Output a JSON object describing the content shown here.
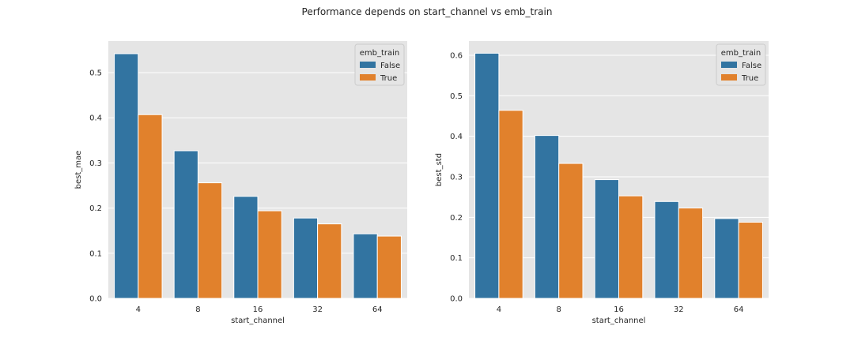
{
  "figure": {
    "title": "Performance depends on start_channel vs emb_train"
  },
  "colors": {
    "background": "#e5e5e5",
    "grid": "#ffffff",
    "False": "#3274a1",
    "True": "#e1812c"
  },
  "chart_data": [
    {
      "type": "bar",
      "categories": [
        "4",
        "8",
        "16",
        "32",
        "64"
      ],
      "series": [
        {
          "name": "False",
          "values": [
            0.542,
            0.327,
            0.226,
            0.178,
            0.143
          ]
        },
        {
          "name": "True",
          "values": [
            0.407,
            0.256,
            0.194,
            0.165,
            0.138
          ]
        }
      ],
      "xlabel": "start_channel",
      "ylabel": "best_mae",
      "ylim": [
        0,
        0.57
      ],
      "yticks": [
        0.0,
        0.1,
        0.2,
        0.3,
        0.4,
        0.5
      ],
      "ytick_labels": [
        "0.0",
        "0.1",
        "0.2",
        "0.3",
        "0.4",
        "0.5"
      ],
      "legend": {
        "title": "emb_train",
        "placement": "top-right"
      },
      "grid": true
    },
    {
      "type": "bar",
      "categories": [
        "4",
        "8",
        "16",
        "32",
        "64"
      ],
      "series": [
        {
          "name": "False",
          "values": [
            0.605,
            0.402,
            0.293,
            0.239,
            0.197
          ]
        },
        {
          "name": "True",
          "values": [
            0.464,
            0.333,
            0.253,
            0.223,
            0.188
          ]
        }
      ],
      "xlabel": "start_channel",
      "ylabel": "best_std",
      "ylim": [
        0,
        0.635
      ],
      "yticks": [
        0.0,
        0.1,
        0.2,
        0.3,
        0.4,
        0.5,
        0.6
      ],
      "ytick_labels": [
        "0.0",
        "0.1",
        "0.2",
        "0.3",
        "0.4",
        "0.5",
        "0.6"
      ],
      "legend": {
        "title": "emb_train",
        "placement": "top-right"
      },
      "grid": true
    }
  ]
}
